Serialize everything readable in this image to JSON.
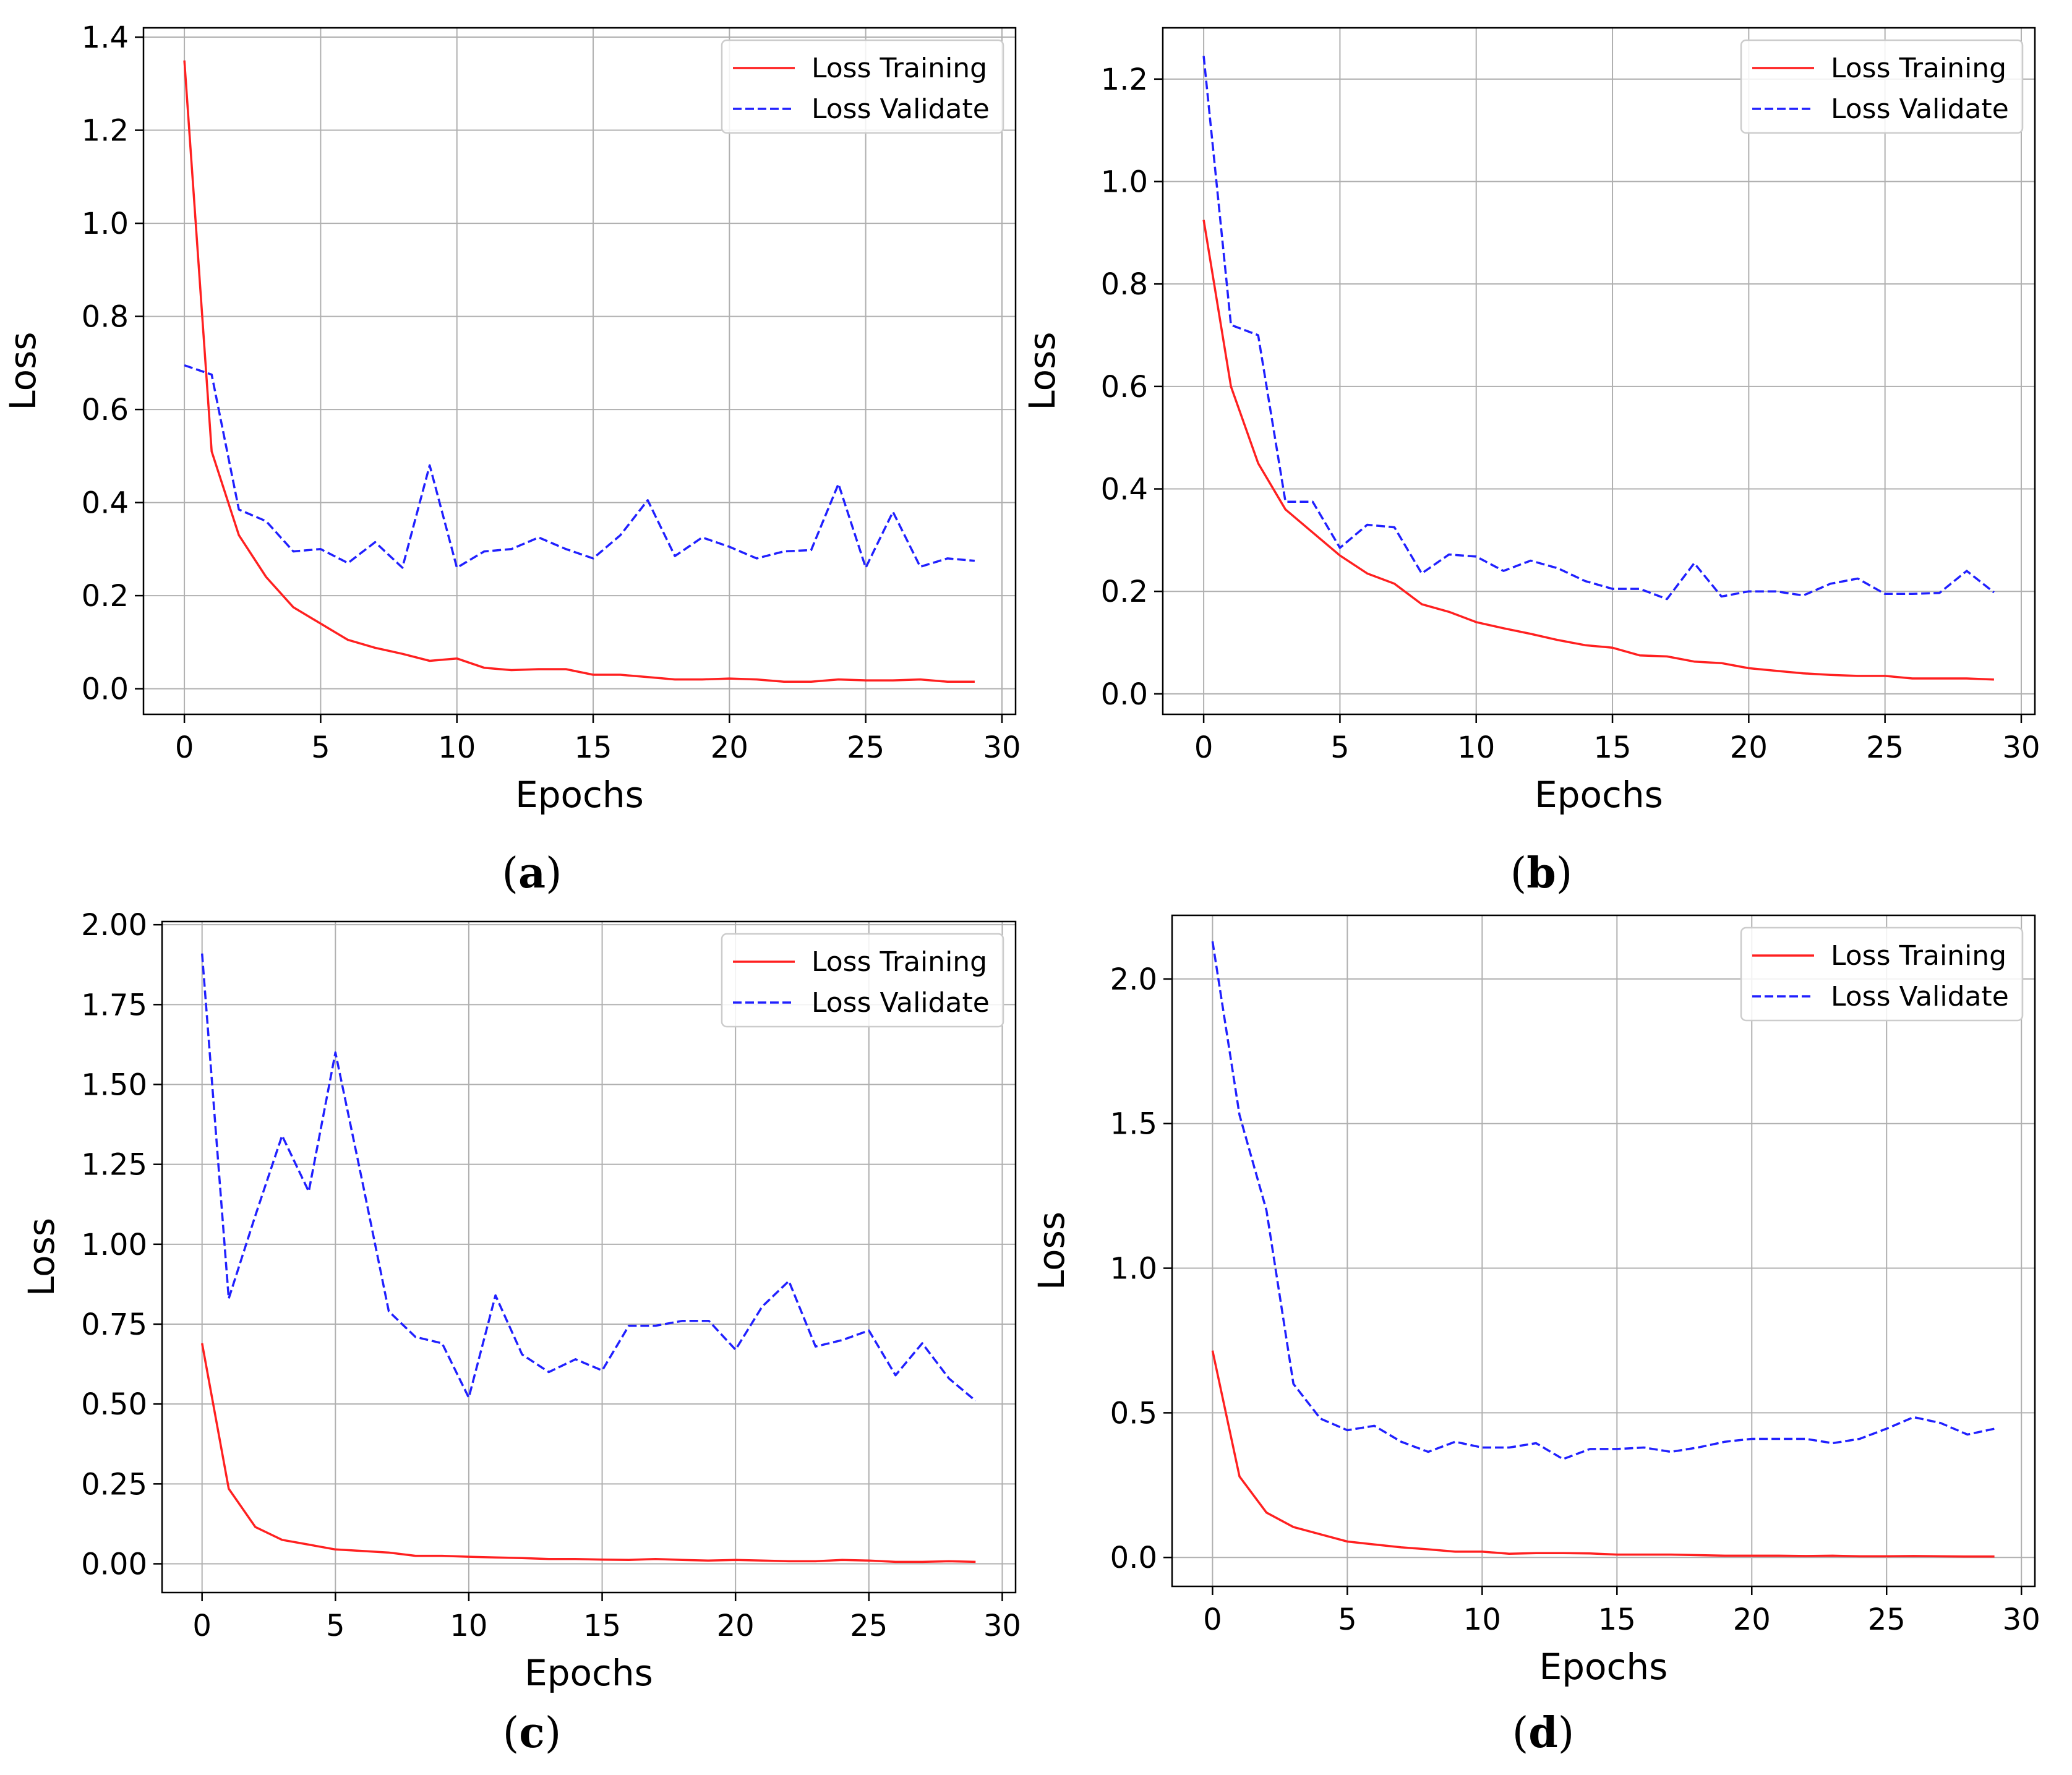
{
  "colors": {
    "training": "#ff2020",
    "validate": "#2020ff",
    "grid": "#b0b0b0",
    "axis": "#000000"
  },
  "chart_data": [
    {
      "id": "a",
      "type": "line",
      "panel_label": "a",
      "xlabel": "Epochs",
      "ylabel": "Loss",
      "xlim": [
        -1.5,
        30.5
      ],
      "ylim": [
        -0.055,
        1.42
      ],
      "xticks": [
        0,
        5,
        10,
        15,
        20,
        25,
        30
      ],
      "yticks": [
        0.0,
        0.2,
        0.4,
        0.6,
        0.8,
        1.0,
        1.2,
        1.4
      ],
      "ytick_labels": [
        "0.0",
        "0.2",
        "0.4",
        "0.6",
        "0.8",
        "1.0",
        "1.2",
        "1.4"
      ],
      "grid": true,
      "legend": "top-right",
      "x": [
        0,
        1,
        2,
        3,
        4,
        5,
        6,
        7,
        8,
        9,
        10,
        11,
        12,
        13,
        14,
        15,
        16,
        17,
        18,
        19,
        20,
        21,
        22,
        23,
        24,
        25,
        26,
        27,
        28,
        29
      ],
      "series": [
        {
          "name": "Loss Training",
          "style": "solid",
          "values": [
            1.35,
            0.51,
            0.33,
            0.24,
            0.175,
            0.14,
            0.105,
            0.088,
            0.075,
            0.06,
            0.065,
            0.045,
            0.04,
            0.042,
            0.042,
            0.03,
            0.03,
            0.025,
            0.02,
            0.02,
            0.022,
            0.02,
            0.015,
            0.015,
            0.02,
            0.018,
            0.018,
            0.02,
            0.015,
            0.015
          ]
        },
        {
          "name": "Loss Validate",
          "style": "dashed",
          "values": [
            0.695,
            0.675,
            0.385,
            0.36,
            0.295,
            0.3,
            0.27,
            0.315,
            0.26,
            0.48,
            0.26,
            0.295,
            0.3,
            0.325,
            0.3,
            0.28,
            0.33,
            0.405,
            0.285,
            0.325,
            0.305,
            0.28,
            0.295,
            0.298,
            0.44,
            0.26,
            0.38,
            0.262,
            0.28,
            0.275
          ]
        }
      ]
    },
    {
      "id": "b",
      "type": "line",
      "panel_label": "b",
      "xlabel": "Epochs",
      "ylabel": "Loss",
      "xlim": [
        -1.5,
        30.5
      ],
      "ylim": [
        -0.04,
        1.3
      ],
      "xticks": [
        0,
        5,
        10,
        15,
        20,
        25,
        30
      ],
      "yticks": [
        0.0,
        0.2,
        0.4,
        0.6,
        0.8,
        1.0,
        1.2
      ],
      "ytick_labels": [
        "0.0",
        "0.2",
        "0.4",
        "0.6",
        "0.8",
        "1.0",
        "1.2"
      ],
      "grid": true,
      "legend": "top-right",
      "x": [
        0,
        1,
        2,
        3,
        4,
        5,
        6,
        7,
        8,
        9,
        10,
        11,
        12,
        13,
        14,
        15,
        16,
        17,
        18,
        19,
        20,
        21,
        22,
        23,
        24,
        25,
        26,
        27,
        28,
        29
      ],
      "series": [
        {
          "name": "Loss Training",
          "style": "solid",
          "values": [
            0.925,
            0.6,
            0.45,
            0.36,
            0.315,
            0.27,
            0.235,
            0.215,
            0.175,
            0.16,
            0.14,
            0.128,
            0.117,
            0.105,
            0.095,
            0.09,
            0.075,
            0.073,
            0.063,
            0.06,
            0.05,
            0.045,
            0.04,
            0.037,
            0.035,
            0.035,
            0.03,
            0.03,
            0.03,
            0.028
          ]
        },
        {
          "name": "Loss Validate",
          "style": "dashed",
          "values": [
            1.245,
            0.72,
            0.7,
            0.375,
            0.375,
            0.285,
            0.33,
            0.325,
            0.235,
            0.272,
            0.268,
            0.24,
            0.26,
            0.245,
            0.22,
            0.205,
            0.205,
            0.185,
            0.255,
            0.19,
            0.2,
            0.2,
            0.192,
            0.215,
            0.225,
            0.195,
            0.195,
            0.197,
            0.24,
            0.198
          ]
        }
      ]
    },
    {
      "id": "c",
      "type": "line",
      "panel_label": "c",
      "xlabel": "Epochs",
      "ylabel": "Loss",
      "xlim": [
        -1.5,
        30.5
      ],
      "ylim": [
        -0.09,
        2.01
      ],
      "xticks": [
        0,
        5,
        10,
        15,
        20,
        25,
        30
      ],
      "yticks": [
        0.0,
        0.25,
        0.5,
        0.75,
        1.0,
        1.25,
        1.5,
        1.75,
        2.0
      ],
      "ytick_labels": [
        "0.00",
        "0.25",
        "0.50",
        "0.75",
        "1.00",
        "1.25",
        "1.50",
        "1.75",
        "2.00"
      ],
      "grid": true,
      "legend": "top-right",
      "x": [
        0,
        1,
        2,
        3,
        4,
        5,
        6,
        7,
        8,
        9,
        10,
        11,
        12,
        13,
        14,
        15,
        16,
        17,
        18,
        19,
        20,
        21,
        22,
        23,
        24,
        25,
        26,
        27,
        28,
        29
      ],
      "series": [
        {
          "name": "Loss Training",
          "style": "solid",
          "values": [
            0.69,
            0.235,
            0.115,
            0.075,
            0.06,
            0.045,
            0.04,
            0.035,
            0.025,
            0.025,
            0.022,
            0.02,
            0.018,
            0.015,
            0.015,
            0.013,
            0.012,
            0.015,
            0.012,
            0.01,
            0.012,
            0.01,
            0.008,
            0.008,
            0.012,
            0.01,
            0.006,
            0.006,
            0.008,
            0.006
          ]
        },
        {
          "name": "Loss Validate",
          "style": "dashed",
          "values": [
            1.91,
            0.83,
            1.09,
            1.34,
            1.165,
            1.6,
            1.2,
            0.79,
            0.71,
            0.69,
            0.52,
            0.84,
            0.655,
            0.6,
            0.64,
            0.605,
            0.745,
            0.745,
            0.76,
            0.76,
            0.67,
            0.805,
            0.885,
            0.68,
            0.7,
            0.73,
            0.59,
            0.69,
            0.58,
            0.51
          ]
        }
      ]
    },
    {
      "id": "d",
      "type": "line",
      "panel_label": "d",
      "xlabel": "Epochs",
      "ylabel": "Loss",
      "xlim": [
        -1.5,
        30.5
      ],
      "ylim": [
        -0.1,
        2.22
      ],
      "xticks": [
        0,
        5,
        10,
        15,
        20,
        25,
        30
      ],
      "yticks": [
        0.0,
        0.5,
        1.0,
        1.5,
        2.0
      ],
      "ytick_labels": [
        "0.0",
        "0.5",
        "1.0",
        "1.5",
        "2.0"
      ],
      "grid": true,
      "legend": "top-right",
      "x": [
        0,
        1,
        2,
        3,
        4,
        5,
        6,
        7,
        8,
        9,
        10,
        11,
        12,
        13,
        14,
        15,
        16,
        17,
        18,
        19,
        20,
        21,
        22,
        23,
        24,
        25,
        26,
        27,
        28,
        29
      ],
      "series": [
        {
          "name": "Loss Training",
          "style": "solid",
          "values": [
            0.715,
            0.28,
            0.155,
            0.105,
            0.08,
            0.055,
            0.045,
            0.035,
            0.028,
            0.02,
            0.02,
            0.013,
            0.015,
            0.015,
            0.014,
            0.01,
            0.01,
            0.01,
            0.008,
            0.006,
            0.006,
            0.006,
            0.005,
            0.006,
            0.004,
            0.004,
            0.005,
            0.004,
            0.003,
            0.003
          ]
        },
        {
          "name": "Loss Validate",
          "style": "dashed",
          "values": [
            2.13,
            1.53,
            1.2,
            0.6,
            0.48,
            0.44,
            0.455,
            0.4,
            0.365,
            0.4,
            0.38,
            0.38,
            0.395,
            0.34,
            0.375,
            0.375,
            0.38,
            0.365,
            0.38,
            0.4,
            0.41,
            0.41,
            0.41,
            0.395,
            0.41,
            0.445,
            0.485,
            0.465,
            0.425,
            0.445
          ]
        }
      ]
    }
  ]
}
